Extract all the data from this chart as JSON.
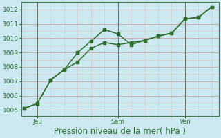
{
  "line1_x": [
    0,
    1,
    2,
    3,
    4,
    5,
    6,
    7,
    8,
    9,
    10,
    11,
    12,
    13,
    14
  ],
  "line1_y": [
    1005.1,
    1005.45,
    1007.1,
    1007.8,
    1009.0,
    1009.8,
    1010.6,
    1010.3,
    1009.55,
    1009.85,
    1010.15,
    1010.35,
    1011.35,
    1011.45,
    1012.2
  ],
  "line2_x": [
    0,
    1,
    2,
    3,
    4,
    5,
    6,
    7,
    8,
    9,
    10,
    11,
    12,
    13,
    14
  ],
  "line2_y": [
    1005.1,
    1005.45,
    1007.1,
    1007.8,
    1008.35,
    1009.3,
    1009.7,
    1009.55,
    1009.7,
    1009.85,
    1010.15,
    1010.35,
    1011.35,
    1011.45,
    1012.2
  ],
  "line_color": "#2d6e2d",
  "bg_color": "#cce8f0",
  "grid_major_color": "#c8a8a8",
  "grid_minor_color": "#ddc8c8",
  "axis_color": "#2d6e2d",
  "xlabel": "Pression niveau de la mer( hPa )",
  "ylim": [
    1004.6,
    1012.5
  ],
  "yticks": [
    1005,
    1006,
    1007,
    1008,
    1009,
    1010,
    1011,
    1012
  ],
  "xtick_positions": [
    1,
    7,
    12
  ],
  "xtick_labels": [
    "Jeu",
    "Sam",
    "Ven"
  ],
  "vline_positions": [
    1,
    7,
    12
  ],
  "xlabel_fontsize": 8.5,
  "tick_fontsize": 6.5
}
